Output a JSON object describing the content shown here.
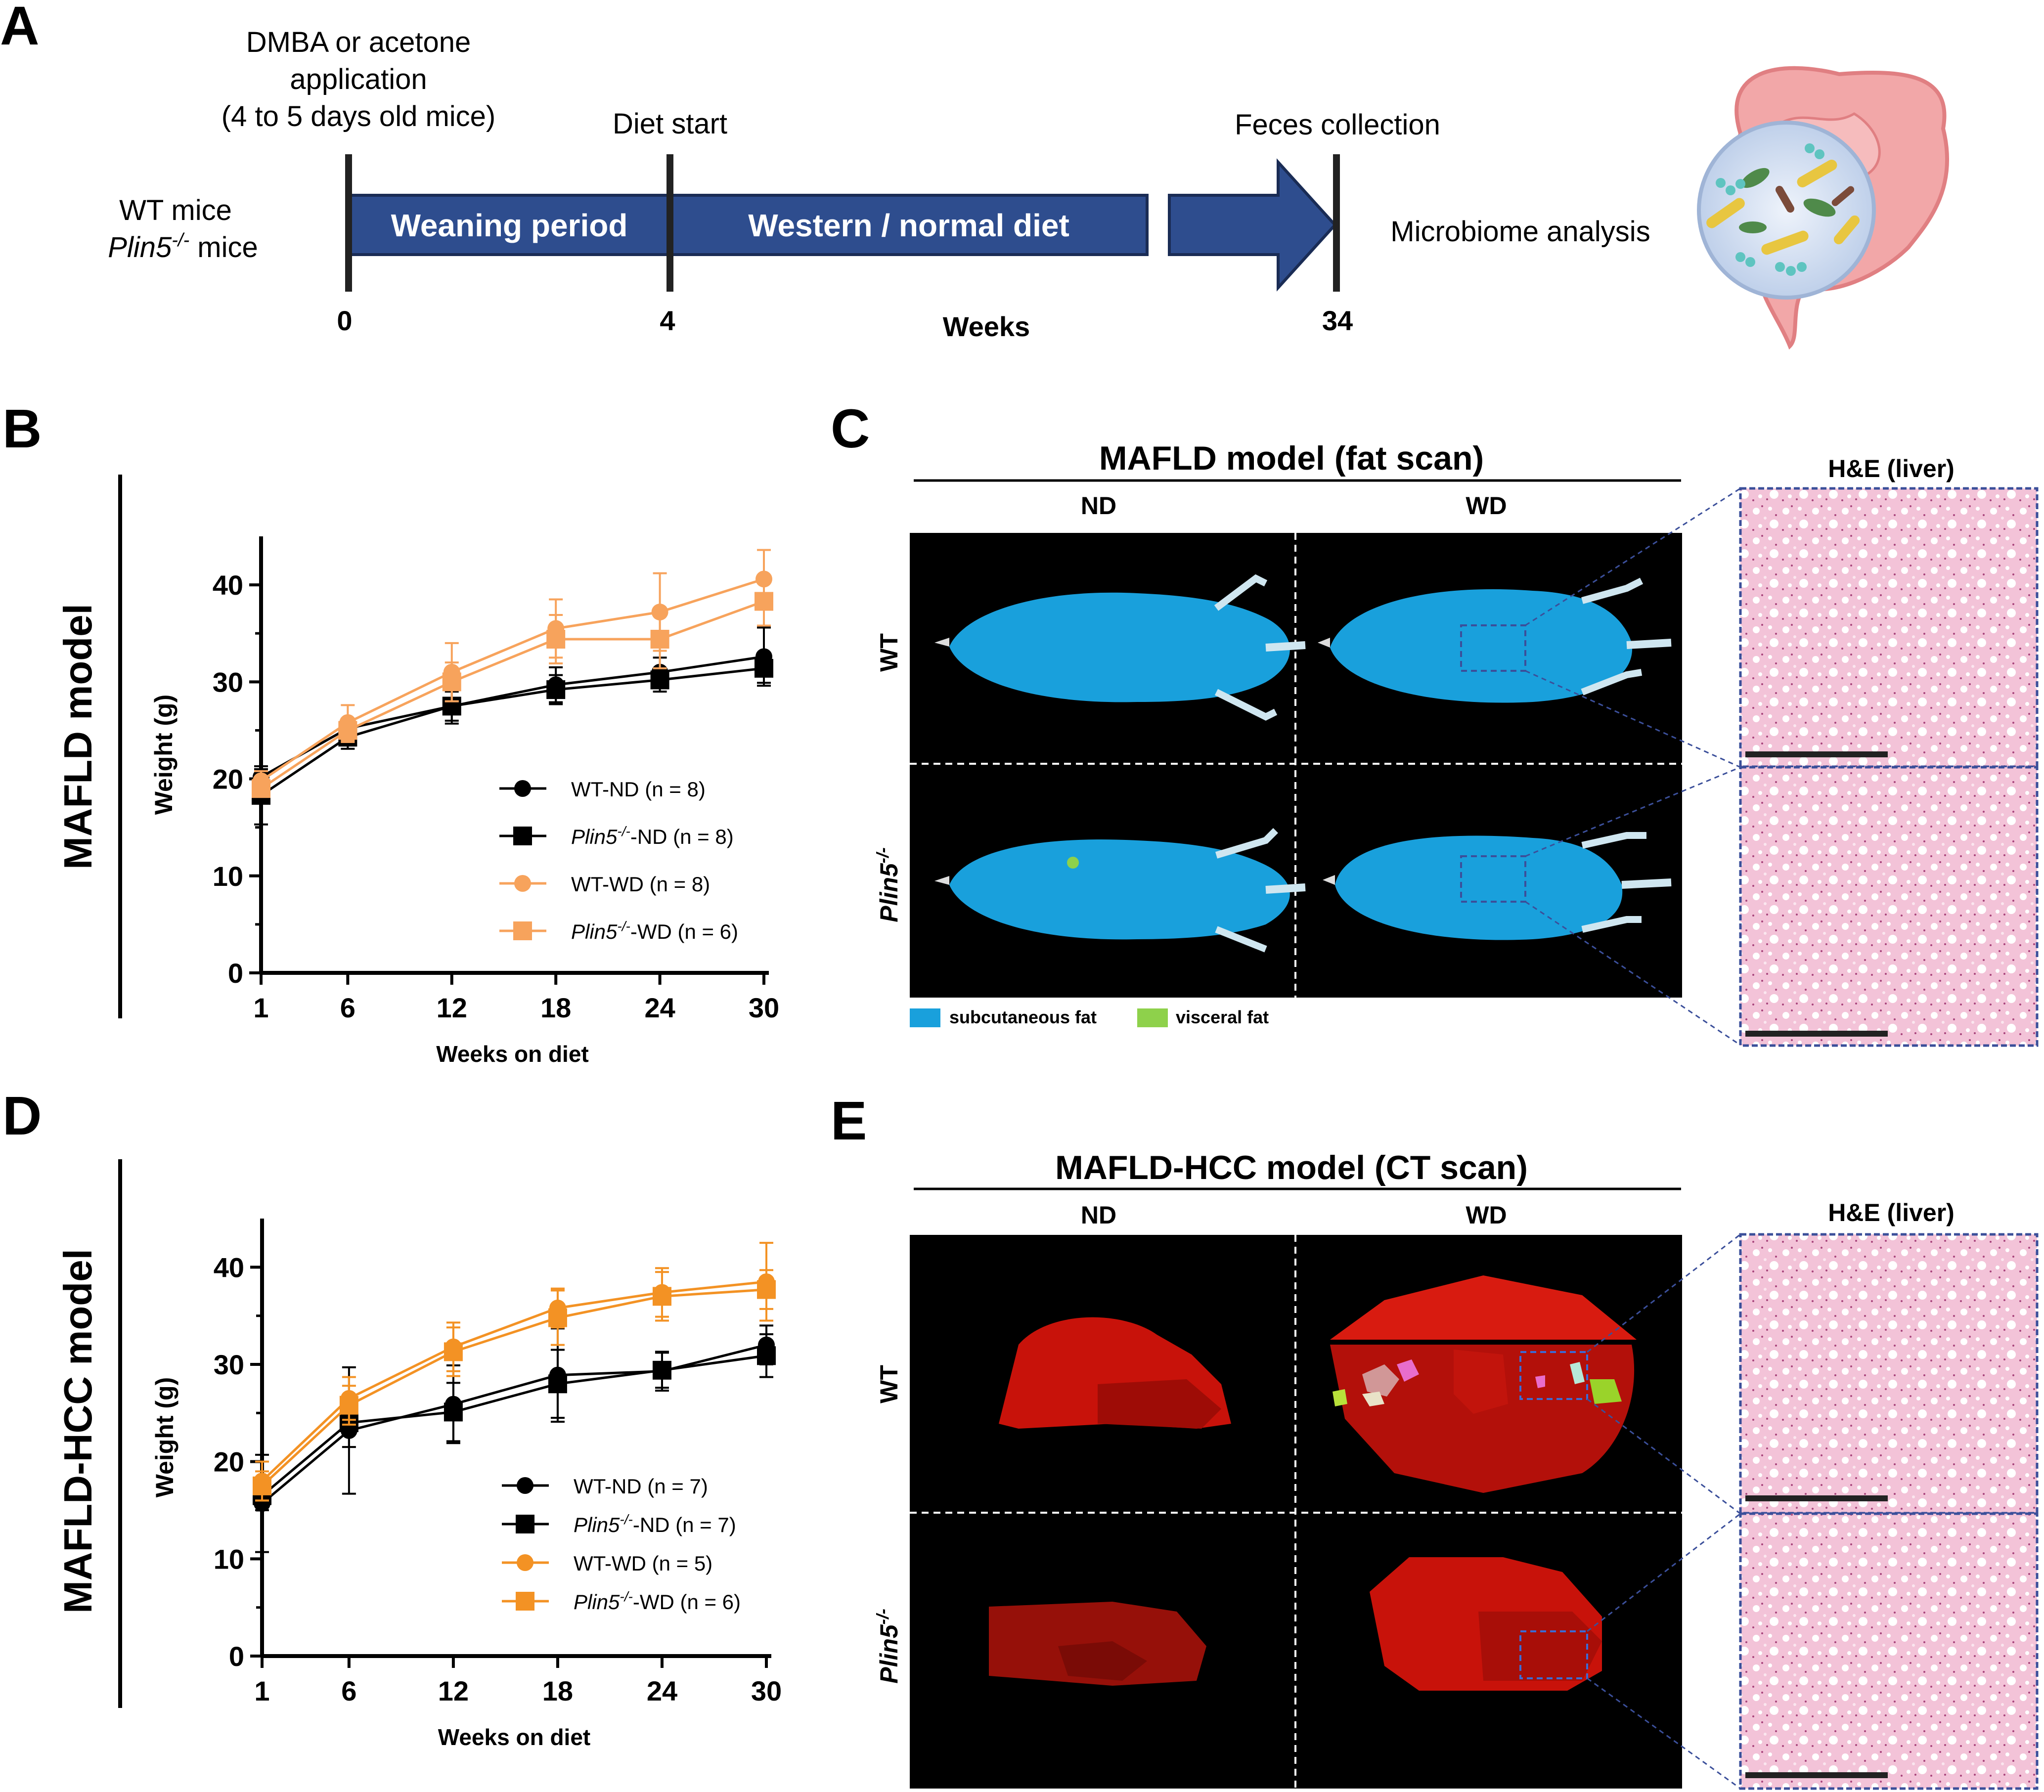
{
  "panel_letters": {
    "a": "A",
    "b": "B",
    "c": "C",
    "d": "D",
    "e": "E"
  },
  "timeline": {
    "treatment_line1": "DMBA or acetone",
    "treatment_line2": "application",
    "treatment_line3": "(4 to 5 days old mice)",
    "diet_start": "Diet start",
    "feces": "Feces collection",
    "mice_wt": "WT mice",
    "mice_plin5_italic": "Plin5",
    "mice_plin5_sup": "-/-",
    "mice_plin5_suffix": " mice",
    "weaning": "Weaning period",
    "diet": "Western / normal diet",
    "microbiome": "Microbiome analysis",
    "tick0": "0",
    "tick4": "4",
    "tick34": "34",
    "axis_label": "Weeks",
    "colors": {
      "bar": "#2e4d8e",
      "gut": "#f2a7a8"
    }
  },
  "side_labels": {
    "mafld": "MAFLD model",
    "hcc": "MAFLD-HCC model"
  },
  "imaging_c": {
    "title": "MAFLD model (fat scan)",
    "col_nd": "ND",
    "col_wd": "WD",
    "row_wt": "WT",
    "row_plin_italic": "Plin5",
    "row_plin_sup": "-/-",
    "he_title": "H&E (liver)",
    "legend_sub": "subcutaneous fat",
    "legend_vis": "visceral fat",
    "colors": {
      "sub": "#19a0dc",
      "vis": "#8ed14b"
    }
  },
  "imaging_e": {
    "title": "MAFLD-HCC model (CT scan)",
    "col_nd": "ND",
    "col_wd": "WD",
    "row_wt": "WT",
    "row_plin_italic": "Plin5",
    "row_plin_sup": "-/-",
    "he_title": "H&E (liver)"
  },
  "chart_data": [
    {
      "type": "line",
      "panel": "B",
      "xlabel": "Weeks on diet",
      "ylabel": "Weight (g)",
      "x": [
        1,
        6,
        12,
        18,
        24,
        30
      ],
      "ylim": [
        0,
        45
      ],
      "yticks": [
        0,
        10,
        20,
        30,
        40
      ],
      "legend_position": "center-right",
      "series": [
        {
          "name": "WT-ND",
          "n_label": "(n = 8)",
          "name_italic": "",
          "name_sup": "",
          "name_rest": "WT-ND",
          "color": "#000000",
          "marker": "circle",
          "values": [
            20.2,
            25.2,
            27.5,
            29.7,
            31.0,
            32.6
          ],
          "err": [
            0.8,
            1.0,
            1.5,
            1.8,
            1.5,
            3.0
          ]
        },
        {
          "name": "Plin5-/--ND",
          "n_label": "(n = 8)",
          "name_italic": "Plin5",
          "name_sup": "-/-",
          "name_rest": "-ND",
          "color": "#000000",
          "marker": "square",
          "values": [
            18.3,
            24.3,
            27.5,
            29.2,
            30.2,
            31.4
          ],
          "err": [
            3.0,
            1.2,
            1.8,
            1.5,
            1.2,
            1.5
          ]
        },
        {
          "name": "WT-WD",
          "n_label": "(n = 8)",
          "name_italic": "",
          "name_sup": "",
          "name_rest": "WT-WD",
          "color": "#f7a35c",
          "marker": "circle",
          "values": [
            19.8,
            25.8,
            31.0,
            35.5,
            37.2,
            40.6
          ],
          "err": [
            1.0,
            1.8,
            3.0,
            3.0,
            4.0,
            3.0
          ]
        },
        {
          "name": "Plin5-/--WD",
          "n_label": "(n = 6)",
          "name_italic": "Plin5",
          "name_sup": "-/-",
          "name_rest": "-WD",
          "color": "#f7a35c",
          "marker": "square",
          "values": [
            19.0,
            25.0,
            30.0,
            34.4,
            34.4,
            38.3
          ],
          "err": [
            0.8,
            1.2,
            2.0,
            2.5,
            3.0,
            2.5
          ]
        }
      ]
    },
    {
      "type": "line",
      "panel": "D",
      "xlabel": "Weeks on diet",
      "ylabel": "Weight (g)",
      "x": [
        1,
        6,
        12,
        18,
        24,
        30
      ],
      "ylim": [
        0,
        45
      ],
      "yticks": [
        0,
        10,
        20,
        30,
        40
      ],
      "legend_position": "lower-right",
      "series": [
        {
          "name": "WT-ND",
          "n_label": "(n = 7)",
          "name_italic": "",
          "name_sup": "",
          "name_rest": "WT-ND",
          "color": "#000000",
          "marker": "circle",
          "values": [
            15.7,
            23.2,
            25.9,
            28.9,
            29.3,
            32.0
          ],
          "err": [
            5.0,
            6.5,
            4.0,
            4.8,
            2.0,
            2.0
          ]
        },
        {
          "name": "Plin5-/--ND",
          "n_label": "(n = 7)",
          "name_italic": "Plin5",
          "name_sup": "-/-",
          "name_rest": "-ND",
          "color": "#000000",
          "marker": "square",
          "values": [
            16.5,
            24.0,
            25.1,
            28.0,
            29.4,
            30.9
          ],
          "err": [
            1.5,
            2.5,
            3.0,
            3.5,
            1.8,
            2.2
          ]
        },
        {
          "name": "WT-WD",
          "n_label": "(n = 5)",
          "name_italic": "",
          "name_sup": "",
          "name_rest": "WT-WD",
          "color": "#f39224",
          "marker": "circle",
          "values": [
            18.0,
            26.5,
            31.8,
            35.8,
            37.4,
            38.5
          ],
          "err": [
            2.0,
            2.2,
            2.5,
            2.0,
            2.5,
            4.0
          ]
        },
        {
          "name": "Plin5-/--WD",
          "n_label": "(n = 6)",
          "name_italic": "Plin5",
          "name_sup": "-/-",
          "name_rest": "-WD",
          "color": "#f39224",
          "marker": "square",
          "values": [
            17.5,
            25.8,
            31.3,
            34.8,
            37.0,
            37.7
          ],
          "err": [
            1.5,
            2.0,
            2.5,
            2.8,
            2.5,
            2.0
          ]
        }
      ]
    }
  ]
}
